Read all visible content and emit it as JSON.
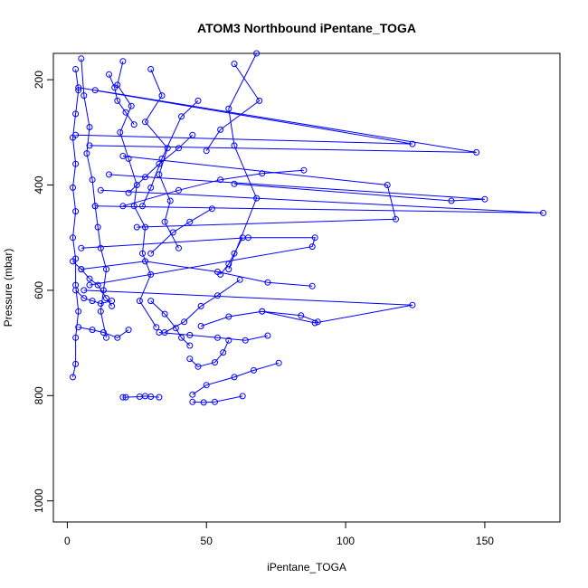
{
  "chart_data": {
    "type": "scatter",
    "title": "ATOM3 Northbound iPentane_TOGA",
    "xlabel": "iPentane_TOGA",
    "ylabel": "Pressure (mbar)",
    "xlim": [
      -5,
      177
    ],
    "ylim": [
      1040,
      150
    ],
    "y_reversed": true,
    "x_ticks": [
      0,
      50,
      100,
      150
    ],
    "y_ticks": [
      200,
      400,
      600,
      800,
      1000
    ],
    "grid": false,
    "legend": "none",
    "marker": "open-circle",
    "series_color": "#0000ff",
    "series": [
      {
        "points": [
          [
            3,
            180
          ],
          [
            4,
            220
          ],
          [
            3,
            265
          ],
          [
            2,
            310
          ],
          [
            3,
            360
          ],
          [
            2,
            405
          ],
          [
            3,
            450
          ],
          [
            2,
            500
          ],
          [
            3,
            540
          ],
          [
            3,
            590
          ],
          [
            4,
            640
          ],
          [
            3,
            690
          ],
          [
            3,
            740
          ],
          [
            2,
            765
          ]
        ]
      },
      {
        "points": [
          [
            5,
            160
          ],
          [
            6,
            230
          ],
          [
            8,
            290
          ],
          [
            7,
            340
          ],
          [
            9,
            390
          ],
          [
            10,
            440
          ],
          [
            11,
            480
          ],
          [
            12,
            520
          ],
          [
            14,
            560
          ],
          [
            13,
            600
          ],
          [
            12,
            640
          ],
          [
            14,
            690
          ]
        ]
      },
      {
        "points": [
          [
            20,
            165
          ],
          [
            18,
            210
          ],
          [
            23,
            250
          ],
          [
            19,
            300
          ],
          [
            22,
            350
          ],
          [
            25,
            400
          ],
          [
            24,
            440
          ],
          [
            28,
            480
          ],
          [
            27,
            530
          ],
          [
            30,
            570
          ],
          [
            26,
            620
          ],
          [
            32,
            670
          ]
        ]
      },
      {
        "points": [
          [
            30,
            180
          ],
          [
            34,
            230
          ],
          [
            28,
            280
          ],
          [
            36,
            330
          ],
          [
            33,
            380
          ],
          [
            37,
            430
          ],
          [
            35,
            470
          ],
          [
            40,
            520
          ]
        ]
      },
      {
        "points": [
          [
            4,
            215
          ],
          [
            124,
            322
          ],
          [
            3,
            305
          ]
        ]
      },
      {
        "points": [
          [
            10,
            220
          ],
          [
            147,
            338
          ],
          [
            8,
            325
          ]
        ]
      },
      {
        "points": [
          [
            12,
            410
          ],
          [
            171,
            453
          ],
          [
            10,
            440
          ]
        ]
      },
      {
        "points": [
          [
            15,
            380
          ],
          [
            150,
            427
          ],
          [
            138,
            430
          ],
          [
            60,
            398
          ]
        ]
      },
      {
        "points": [
          [
            20,
            345
          ],
          [
            115,
            400
          ],
          [
            118,
            465
          ],
          [
            25,
            480
          ]
        ]
      },
      {
        "points": [
          [
            6,
            600
          ],
          [
            124,
            628
          ],
          [
            89,
            662
          ],
          [
            70,
            640
          ]
        ]
      },
      {
        "points": [
          [
            8,
            590
          ],
          [
            88,
            517
          ],
          [
            89,
            500
          ],
          [
            65,
            500
          ],
          [
            5,
            520
          ]
        ]
      },
      {
        "points": [
          [
            60,
            170
          ],
          [
            69,
            240
          ],
          [
            55,
            295
          ],
          [
            50,
            335
          ]
        ]
      },
      {
        "points": [
          [
            68,
            150
          ],
          [
            58,
            255
          ],
          [
            60,
            325
          ],
          [
            68,
            425
          ],
          [
            58,
            560
          ]
        ]
      },
      {
        "points": [
          [
            47,
            240
          ],
          [
            41,
            270
          ],
          [
            34,
            350
          ],
          [
            30,
            405
          ],
          [
            27,
            440
          ]
        ]
      },
      {
        "points": [
          [
            52,
            445
          ],
          [
            44,
            470
          ],
          [
            38,
            490
          ],
          [
            30,
            530
          ]
        ]
      },
      {
        "points": [
          [
            63,
            500
          ],
          [
            60,
            530
          ],
          [
            58,
            550
          ],
          [
            55,
            570
          ]
        ]
      },
      {
        "points": [
          [
            62,
            580
          ],
          [
            54,
            610
          ],
          [
            48,
            630
          ],
          [
            42,
            660
          ],
          [
            35,
            680
          ]
        ]
      },
      {
        "points": [
          [
            90,
            660
          ],
          [
            84,
            648
          ],
          [
            70,
            640
          ],
          [
            58,
            650
          ],
          [
            48,
            668
          ]
        ]
      },
      {
        "points": [
          [
            72,
            686
          ],
          [
            64,
            695
          ],
          [
            54,
            690
          ],
          [
            44,
            685
          ],
          [
            33,
            680
          ]
        ]
      },
      {
        "points": [
          [
            76,
            738
          ],
          [
            67,
            752
          ],
          [
            60,
            765
          ],
          [
            50,
            780
          ],
          [
            45,
            798
          ]
        ]
      },
      {
        "points": [
          [
            20,
            803
          ],
          [
            21,
            803
          ],
          [
            26,
            802
          ],
          [
            28,
            801
          ],
          [
            30,
            802
          ],
          [
            33,
            803
          ]
        ]
      },
      {
        "points": [
          [
            45,
            812
          ],
          [
            49,
            813
          ],
          [
            53,
            812
          ],
          [
            63,
            801
          ]
        ]
      },
      {
        "points": [
          [
            44,
            730
          ],
          [
            47,
            745
          ],
          [
            53,
            737
          ],
          [
            56,
            718
          ],
          [
            58,
            695
          ]
        ]
      },
      {
        "points": [
          [
            30,
            620
          ],
          [
            35,
            645
          ],
          [
            39,
            672
          ],
          [
            41,
            690
          ],
          [
            44,
            705
          ]
        ]
      },
      {
        "points": [
          [
            4,
            670
          ],
          [
            9,
            675
          ],
          [
            13,
            680
          ],
          [
            18,
            690
          ],
          [
            22,
            675
          ]
        ]
      },
      {
        "points": [
          [
            2,
            545
          ],
          [
            5,
            560
          ],
          [
            8,
            578
          ],
          [
            11,
            590
          ],
          [
            14,
            615
          ],
          [
            16,
            630
          ]
        ]
      },
      {
        "points": [
          [
            3,
            600
          ],
          [
            6,
            615
          ],
          [
            9,
            620
          ],
          [
            12,
            625
          ],
          [
            16,
            620
          ]
        ]
      },
      {
        "points": [
          [
            85,
            372
          ],
          [
            70,
            378
          ],
          [
            55,
            390
          ],
          [
            40,
            410
          ],
          [
            20,
            440
          ]
        ]
      },
      {
        "points": [
          [
            45,
            305
          ],
          [
            40,
            330
          ],
          [
            33,
            360
          ],
          [
            28,
            385
          ],
          [
            22,
            415
          ]
        ]
      },
      {
        "points": [
          [
            5,
            560
          ],
          [
            28,
            545
          ],
          [
            54,
            565
          ],
          [
            72,
            585
          ],
          [
            88,
            592
          ]
        ]
      },
      {
        "points": [
          [
            15,
            190
          ],
          [
            17,
            215
          ],
          [
            18,
            240
          ],
          [
            21,
            262
          ],
          [
            24,
            285
          ]
        ]
      }
    ]
  }
}
